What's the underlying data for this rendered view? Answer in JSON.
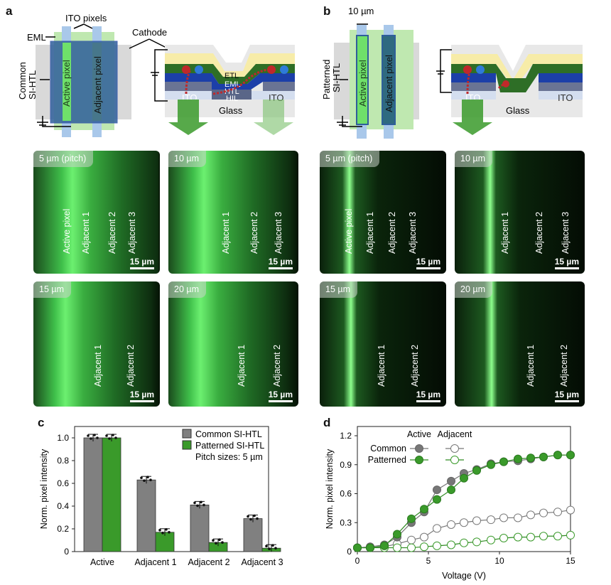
{
  "panel_a": {
    "label": "a",
    "ito_pixels": "ITO pixels",
    "eml": "EML",
    "common": "Common",
    "si_htl": "SI-HTL",
    "active_pixel": "Active pixel",
    "adjacent_pixel": "Adjacent pixel",
    "cathode": "Cathode",
    "etl": "ETL",
    "eml_layer": "EML",
    "htl": "HTL",
    "hil": "HIL",
    "ito_left": "ITO",
    "ito_right": "ITO",
    "glass": "Glass"
  },
  "panel_b": {
    "label": "b",
    "width_label": "10 µm",
    "patterned": "Patterned",
    "si_htl": "SI-HTL",
    "active_pixel": "Active pixel",
    "adjacent_pixel": "Adjacent pixel",
    "ito_left": "ITO",
    "ito_right": "ITO",
    "glass": "Glass"
  },
  "micrographs": {
    "scale_bar": "15 µm",
    "common": [
      {
        "tag": "5 µm (pitch)",
        "labels": [
          "Active pixel",
          "Adjacent 1",
          "Adjacent 2",
          "Adjacent 3"
        ]
      },
      {
        "tag": "10 µm",
        "labels": [
          "Adjacent 1",
          "Adjacent 2",
          "Adjacent 3"
        ]
      },
      {
        "tag": "15 µm",
        "labels": [
          "Adjacent 1",
          "Adjacent 2"
        ]
      },
      {
        "tag": "20 µm",
        "labels": [
          "Adjacent 1",
          "Adjacent 2"
        ]
      }
    ],
    "patterned": [
      {
        "tag": "5 µm (pitch)",
        "labels": [
          "Active pixel",
          "Adjacent 1",
          "Adjacent 2",
          "Adjacent 3"
        ]
      },
      {
        "tag": "10 µm",
        "labels": [
          "Adjacent 1",
          "Adjacent 2",
          "Adjacent 3"
        ]
      },
      {
        "tag": "15 µm",
        "labels": [
          "Adjacent 1",
          "Adjacent 2"
        ]
      },
      {
        "tag": "20 µm",
        "labels": [
          "Adjacent 1",
          "Adjacent 2"
        ]
      }
    ]
  },
  "colors": {
    "common": "#808080",
    "patterned": "#3a9a2a",
    "glow": "#4cff5c"
  },
  "chart_data": [
    {
      "panel": "c",
      "type": "bar",
      "ylabel": "Norm. pixel intensity",
      "xlabel": "",
      "ylim": [
        0,
        1.1
      ],
      "yticks": [
        "0",
        "0.2",
        "0.4",
        "0.6",
        "0.8",
        "1.0"
      ],
      "categories": [
        "Active",
        "Adjacent 1",
        "Adjacent 2",
        "Adjacent 3"
      ],
      "series": [
        {
          "name": "Common SI-HTL",
          "values": [
            1.0,
            0.63,
            0.41,
            0.29
          ]
        },
        {
          "name": "Patterned SI-HTL",
          "values": [
            1.0,
            0.17,
            0.08,
            0.03
          ]
        }
      ],
      "annotation": "Pitch sizes: 5 µm",
      "error_bars": true,
      "legend": "top-right"
    },
    {
      "panel": "d",
      "type": "line",
      "xlabel": "Voltage (V)",
      "ylabel": "Norm. pixel intensity",
      "xlim": [
        0,
        15
      ],
      "ylim": [
        0,
        1.25
      ],
      "xticks": [
        "0",
        "5",
        "10",
        "15"
      ],
      "yticks": [
        "0",
        "0.3",
        "0.6",
        "0.9",
        "1.2"
      ],
      "legend_headers": [
        "Active",
        "Adjacent"
      ],
      "legend_rows": [
        "Common",
        "Patterned"
      ],
      "legend": "top-left",
      "x": [
        0,
        0.9,
        1.9,
        2.8,
        3.8,
        4.7,
        5.6,
        6.6,
        7.5,
        8.4,
        9.4,
        10.3,
        11.3,
        12.2,
        13.1,
        14.1,
        15
      ],
      "series": [
        {
          "name": "Common Active",
          "values": [
            0.04,
            0.05,
            0.07,
            0.15,
            0.3,
            0.41,
            0.64,
            0.73,
            0.81,
            0.85,
            0.91,
            0.93,
            0.94,
            0.96,
            0.98,
            1.0,
            1.0
          ]
        },
        {
          "name": "Patterned Active",
          "values": [
            0.04,
            0.04,
            0.06,
            0.18,
            0.34,
            0.44,
            0.54,
            0.64,
            0.76,
            0.84,
            0.9,
            0.93,
            0.96,
            0.97,
            0.98,
            1.0,
            1.0
          ]
        },
        {
          "name": "Common Adjacent",
          "values": [
            0.04,
            0.04,
            0.05,
            0.08,
            0.12,
            0.15,
            0.24,
            0.28,
            0.3,
            0.32,
            0.33,
            0.35,
            0.35,
            0.38,
            0.4,
            0.41,
            0.43
          ]
        },
        {
          "name": "Patterned Adjacent",
          "values": [
            0.04,
            0.04,
            0.04,
            0.04,
            0.04,
            0.05,
            0.06,
            0.07,
            0.09,
            0.1,
            0.12,
            0.14,
            0.15,
            0.15,
            0.16,
            0.16,
            0.17
          ]
        }
      ]
    }
  ]
}
